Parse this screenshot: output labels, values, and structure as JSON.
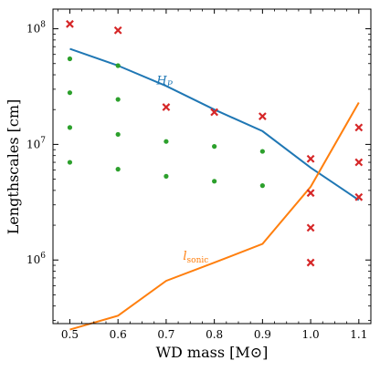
{
  "chart_data": {
    "type": "scatter",
    "xlabel": "WD mass [M⊙]",
    "ylabel": "Lengthscales [cm]",
    "xlim": [
      0.465,
      1.125
    ],
    "ylim_log10": [
      5.45,
      8.17
    ],
    "yscale": "log",
    "grid": false,
    "x_ticks": [
      0.5,
      0.6,
      0.7,
      0.8,
      0.9,
      1.0,
      1.1
    ],
    "x_tick_labels": [
      "0.5",
      "0.6",
      "0.7",
      "0.8",
      "0.9",
      "1.0",
      "1.1"
    ],
    "y_ticks_log10": [
      6,
      7,
      8
    ],
    "y_tick_labels": [
      {
        "base": "10",
        "exp": "6"
      },
      {
        "base": "10",
        "exp": "7"
      },
      {
        "base": "10",
        "exp": "8"
      }
    ],
    "lines": [
      {
        "name": "H_P",
        "label_base": "H",
        "label_sub": "P",
        "label_at": {
          "x": 0.68,
          "y": 33000000
        },
        "color": "#1f77b4",
        "x": [
          0.5,
          0.6,
          0.7,
          0.8,
          0.9,
          1.0,
          1.1
        ],
        "y": [
          67000000,
          48000000,
          32000000,
          20000000,
          13000000,
          6300000,
          3300000
        ]
      },
      {
        "name": "l_sonic",
        "label_base": "l",
        "label_sub": "sonic",
        "label_at": {
          "x": 0.735,
          "y": 1000000
        },
        "color": "#ff7f0e",
        "x": [
          0.5,
          0.6,
          0.7,
          0.8,
          0.9,
          1.0,
          1.1
        ],
        "y": [
          250000,
          330000,
          660000,
          950000,
          1380000,
          4300000,
          23000000
        ]
      }
    ],
    "dot_points": {
      "color": "#2ca02c",
      "points": [
        {
          "x": 0.5,
          "y": 55000000
        },
        {
          "x": 0.5,
          "y": 28000000
        },
        {
          "x": 0.5,
          "y": 14000000
        },
        {
          "x": 0.5,
          "y": 7000000
        },
        {
          "x": 0.6,
          "y": 48000000
        },
        {
          "x": 0.6,
          "y": 24500000
        },
        {
          "x": 0.6,
          "y": 12200000
        },
        {
          "x": 0.6,
          "y": 6100000
        },
        {
          "x": 0.7,
          "y": 10600000
        },
        {
          "x": 0.7,
          "y": 5300000
        },
        {
          "x": 0.8,
          "y": 9600000
        },
        {
          "x": 0.8,
          "y": 4800000
        },
        {
          "x": 0.9,
          "y": 8700000
        },
        {
          "x": 0.9,
          "y": 4400000
        }
      ]
    },
    "cross_points": {
      "color": "#d62728",
      "points": [
        {
          "x": 0.5,
          "y": 110000000
        },
        {
          "x": 0.6,
          "y": 97000000
        },
        {
          "x": 0.7,
          "y": 21000000
        },
        {
          "x": 0.8,
          "y": 19000000
        },
        {
          "x": 0.9,
          "y": 17500000
        },
        {
          "x": 1.0,
          "y": 7500000
        },
        {
          "x": 1.0,
          "y": 3800000
        },
        {
          "x": 1.0,
          "y": 1900000
        },
        {
          "x": 1.0,
          "y": 950000
        },
        {
          "x": 1.1,
          "y": 14000000
        },
        {
          "x": 1.1,
          "y": 7000000
        },
        {
          "x": 1.1,
          "y": 3500000
        }
      ]
    }
  }
}
